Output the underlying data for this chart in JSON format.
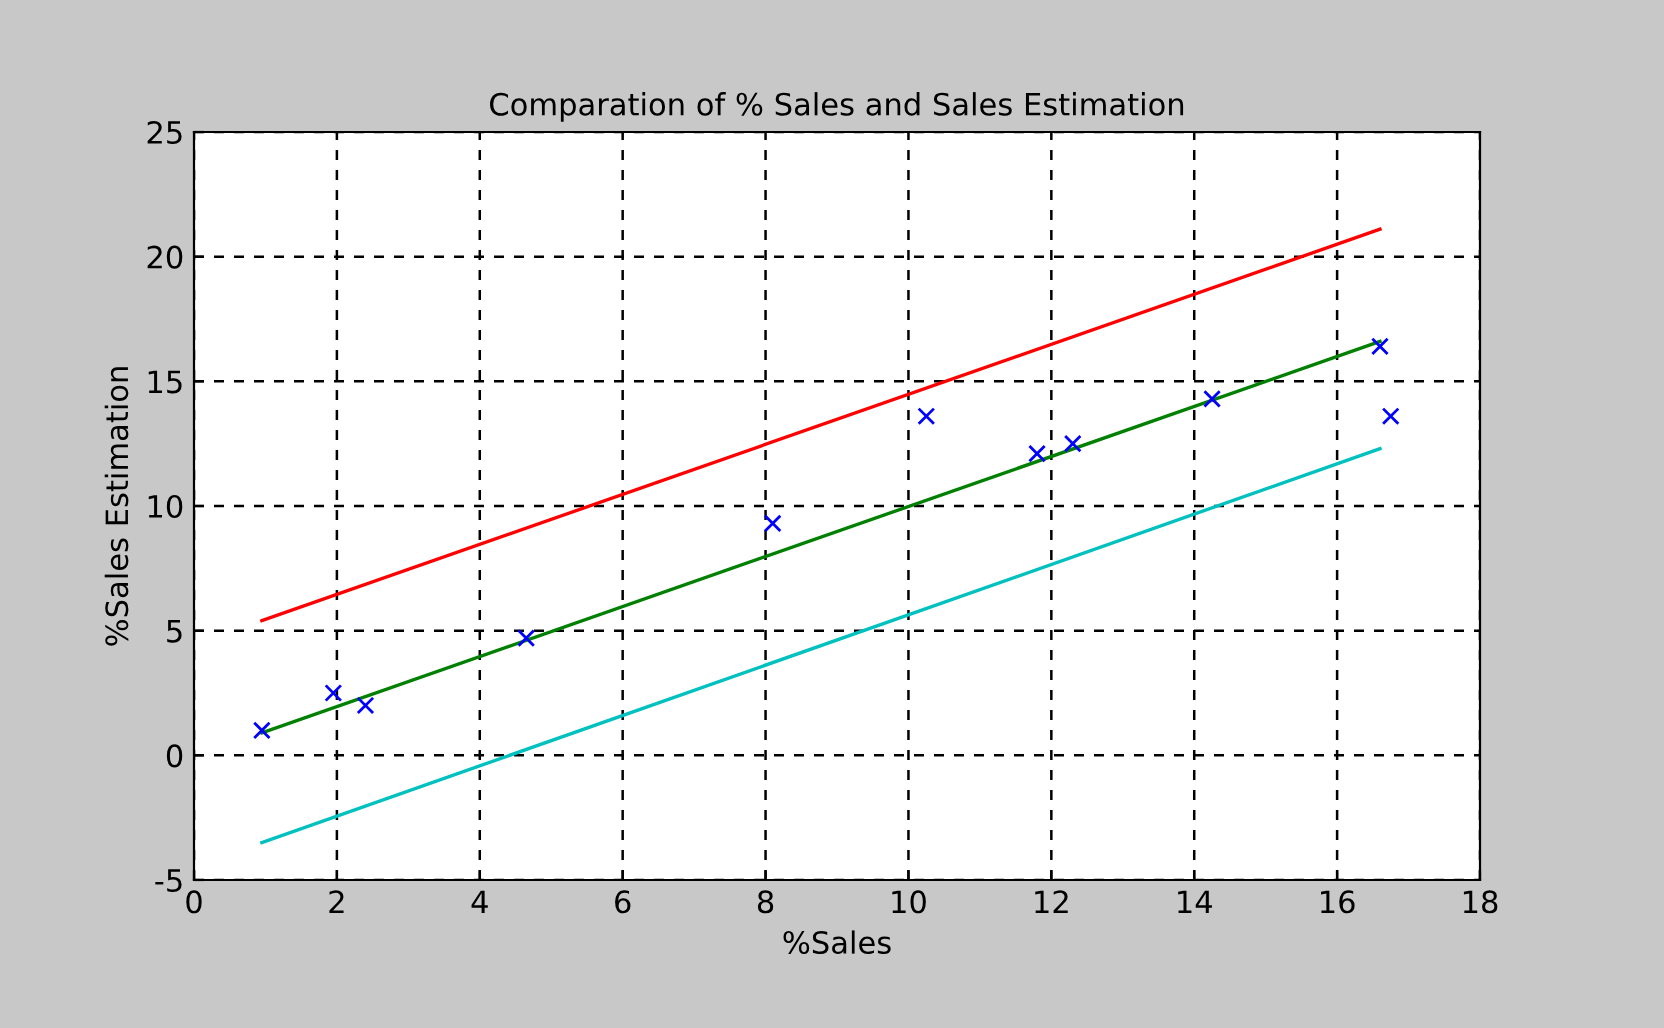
{
  "chart_data": {
    "type": "scatter",
    "title": "Comparation of % Sales and Sales Estimation",
    "xlabel": "%Sales",
    "ylabel": "%Sales Estimation",
    "series": [
      {
        "color": "#0000ff",
        "marker": "cross",
        "x": [
          0.95,
          1.95,
          2.4,
          4.65,
          8.1,
          10.25,
          11.8,
          12.3,
          14.25,
          16.6,
          16.75
        ],
        "values": [
          1.0,
          2.5,
          2.0,
          4.7,
          9.3,
          13.6,
          12.1,
          12.5,
          14.3,
          16.4,
          13.6
        ]
      },
      {
        "type": "line",
        "color": "#ff0000",
        "x": [
          0.95,
          16.6
        ],
        "values": [
          5.4,
          21.1
        ]
      },
      {
        "type": "line",
        "color": "#008000",
        "x": [
          0.95,
          16.6
        ],
        "values": [
          0.9,
          16.6
        ]
      },
      {
        "type": "line",
        "color": "#00c0c0",
        "x": [
          0.95,
          16.6
        ],
        "values": [
          -3.5,
          12.3
        ]
      }
    ],
    "xlim": [
      0,
      18
    ],
    "ylim": [
      -5,
      25
    ],
    "xticks": [
      0,
      2,
      4,
      6,
      8,
      10,
      12,
      14,
      16,
      18
    ],
    "yticks": [
      -5,
      0,
      5,
      10,
      15,
      20,
      25
    ],
    "grid": true,
    "legend": false
  }
}
